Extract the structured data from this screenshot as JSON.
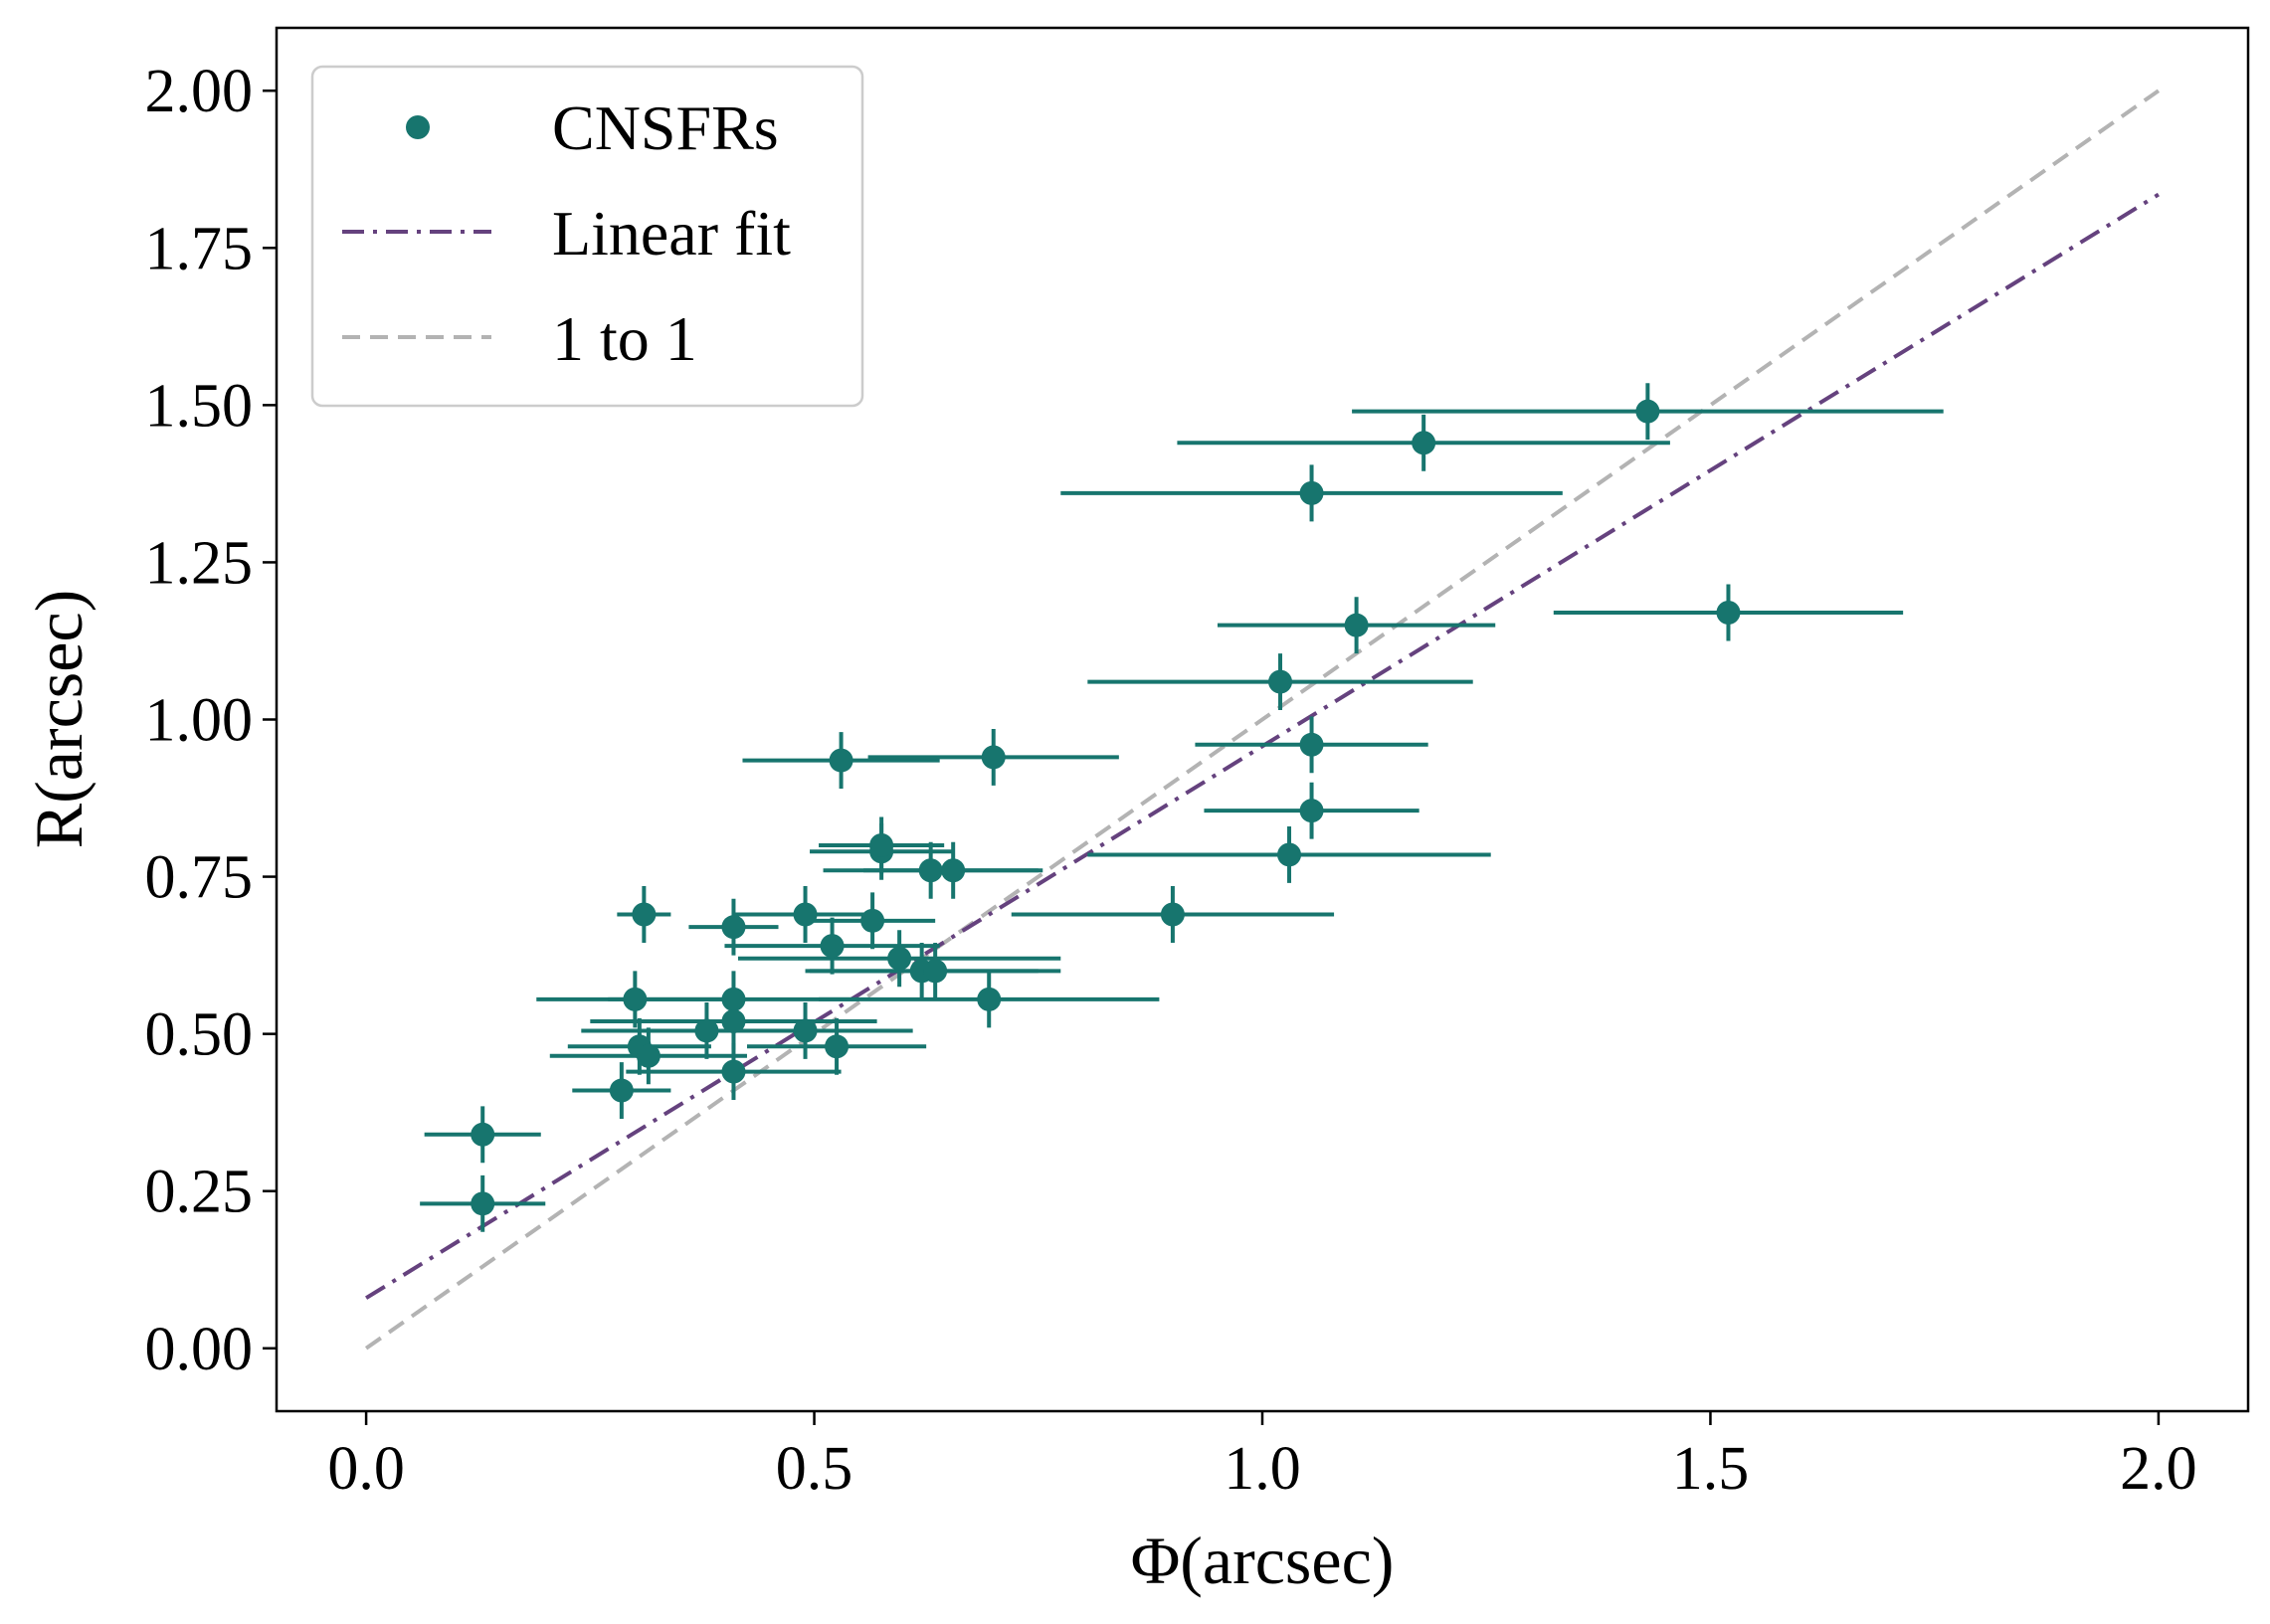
{
  "chart_data": {
    "type": "scatter",
    "title": "",
    "xlabel": "Φ(arcsec)",
    "ylabel": "R(arcsec)",
    "xlim": [
      -0.1,
      2.1
    ],
    "ylim": [
      -0.1,
      2.1
    ],
    "xticks": [
      0.0,
      0.5,
      1.0,
      1.5,
      2.0
    ],
    "xtick_labels": [
      "0.0",
      "0.5",
      "1.0",
      "1.5",
      "2.0"
    ],
    "yticks": [
      0.0,
      0.25,
      0.5,
      0.75,
      1.0,
      1.25,
      1.5,
      1.75,
      2.0
    ],
    "ytick_labels": [
      "0.00",
      "0.25",
      "0.50",
      "0.75",
      "1.00",
      "1.25",
      "1.50",
      "1.75",
      "2.00"
    ],
    "grid": false,
    "legend_position": "top-left",
    "colors": {
      "points": "#17756e",
      "fit": "#65427e",
      "one_to_one": "#b3b3b3"
    },
    "legend": [
      {
        "label": "CNSFRs",
        "style": "marker"
      },
      {
        "label": "Linear fit",
        "style": "dashdot"
      },
      {
        "label": "1 to 1",
        "style": "dashed"
      }
    ],
    "series": [
      {
        "name": "CNSFRs",
        "points": [
          {
            "x": 0.13,
            "y": 0.34,
            "xerr": 0.065,
            "yerr": 0.045
          },
          {
            "x": 0.13,
            "y": 0.23,
            "xerr": 0.07,
            "yerr": 0.045
          },
          {
            "x": 0.285,
            "y": 0.41,
            "xerr": 0.055,
            "yerr": 0.045
          },
          {
            "x": 0.3,
            "y": 0.555,
            "xerr": 0.11,
            "yerr": 0.045
          },
          {
            "x": 0.305,
            "y": 0.48,
            "xerr": 0.08,
            "yerr": 0.045
          },
          {
            "x": 0.31,
            "y": 0.69,
            "xerr": 0.03,
            "yerr": 0.045
          },
          {
            "x": 0.315,
            "y": 0.465,
            "xerr": 0.11,
            "yerr": 0.045
          },
          {
            "x": 0.38,
            "y": 0.505,
            "xerr": 0.14,
            "yerr": 0.045
          },
          {
            "x": 0.41,
            "y": 0.67,
            "xerr": 0.05,
            "yerr": 0.045
          },
          {
            "x": 0.41,
            "y": 0.555,
            "xerr": 0.14,
            "yerr": 0.045
          },
          {
            "x": 0.41,
            "y": 0.52,
            "xerr": 0.16,
            "yerr": 0.045
          },
          {
            "x": 0.41,
            "y": 0.44,
            "xerr": 0.12,
            "yerr": 0.045
          },
          {
            "x": 0.49,
            "y": 0.69,
            "xerr": 0.08,
            "yerr": 0.045
          },
          {
            "x": 0.49,
            "y": 0.505,
            "xerr": 0.12,
            "yerr": 0.045
          },
          {
            "x": 0.52,
            "y": 0.64,
            "xerr": 0.12,
            "yerr": 0.045
          },
          {
            "x": 0.525,
            "y": 0.48,
            "xerr": 0.1,
            "yerr": 0.045
          },
          {
            "x": 0.53,
            "y": 0.935,
            "xerr": 0.11,
            "yerr": 0.045
          },
          {
            "x": 0.565,
            "y": 0.68,
            "xerr": 0.07,
            "yerr": 0.045
          },
          {
            "x": 0.575,
            "y": 0.79,
            "xerr": 0.08,
            "yerr": 0.045
          },
          {
            "x": 0.575,
            "y": 0.8,
            "xerr": 0.07,
            "yerr": 0.045
          },
          {
            "x": 0.595,
            "y": 0.62,
            "xerr": 0.18,
            "yerr": 0.045
          },
          {
            "x": 0.62,
            "y": 0.6,
            "xerr": 0.13,
            "yerr": 0.045
          },
          {
            "x": 0.63,
            "y": 0.76,
            "xerr": 0.12,
            "yerr": 0.045
          },
          {
            "x": 0.635,
            "y": 0.6,
            "xerr": 0.14,
            "yerr": 0.045
          },
          {
            "x": 0.655,
            "y": 0.76,
            "xerr": 0.1,
            "yerr": 0.045
          },
          {
            "x": 0.695,
            "y": 0.555,
            "xerr": 0.19,
            "yerr": 0.045
          },
          {
            "x": 0.7,
            "y": 0.94,
            "xerr": 0.14,
            "yerr": 0.045
          },
          {
            "x": 0.9,
            "y": 0.69,
            "xerr": 0.18,
            "yerr": 0.045
          },
          {
            "x": 1.02,
            "y": 1.06,
            "xerr": 0.215,
            "yerr": 0.045
          },
          {
            "x": 1.03,
            "y": 0.785,
            "xerr": 0.225,
            "yerr": 0.045
          },
          {
            "x": 1.055,
            "y": 0.96,
            "xerr": 0.13,
            "yerr": 0.045
          },
          {
            "x": 1.055,
            "y": 0.855,
            "xerr": 0.12,
            "yerr": 0.045
          },
          {
            "x": 1.055,
            "y": 1.36,
            "xerr": 0.28,
            "yerr": 0.045
          },
          {
            "x": 1.105,
            "y": 1.15,
            "xerr": 0.155,
            "yerr": 0.045
          },
          {
            "x": 1.18,
            "y": 1.44,
            "xerr": 0.275,
            "yerr": 0.045
          },
          {
            "x": 1.43,
            "y": 1.49,
            "xerr": 0.33,
            "yerr": 0.045
          },
          {
            "x": 1.52,
            "y": 1.17,
            "xerr": 0.195,
            "yerr": 0.045
          }
        ]
      },
      {
        "name": "Linear fit",
        "x": [
          0.0,
          2.0
        ],
        "y": [
          0.08,
          1.835
        ]
      },
      {
        "name": "1 to 1",
        "x": [
          0.0,
          2.0
        ],
        "y": [
          0.0,
          2.0
        ]
      }
    ]
  }
}
